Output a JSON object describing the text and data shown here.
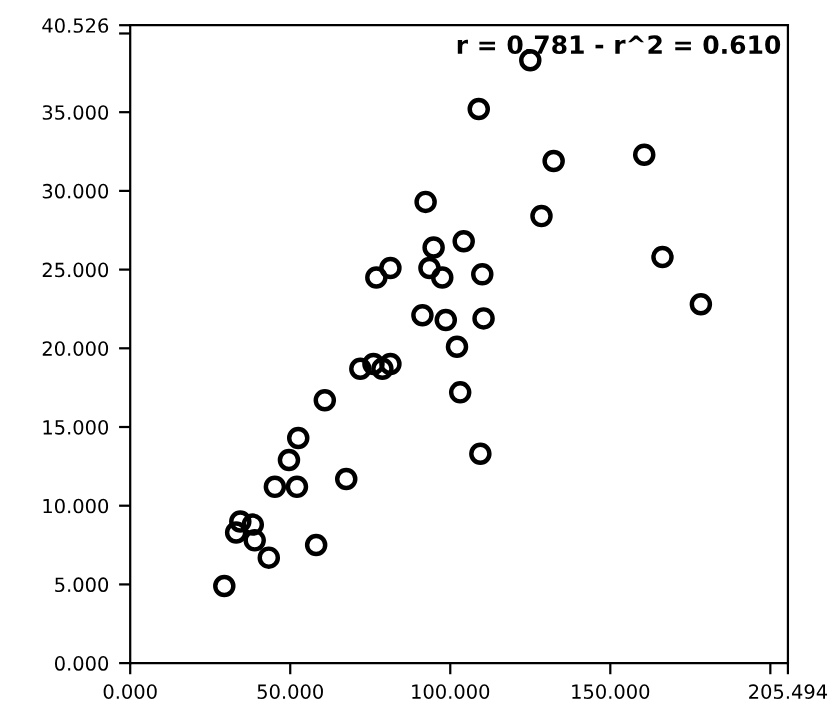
{
  "chart_data": {
    "type": "scatter",
    "marker": "circle",
    "grid": false,
    "legend": false,
    "annotations": [
      "r = 0.781 - r^2 = 0.610"
    ],
    "xlim": [
      0,
      205.494
    ],
    "ylim": [
      0,
      40.526
    ],
    "xticks": [
      {
        "value": 0,
        "label": "0.000"
      },
      {
        "value": 50,
        "label": "50.000"
      },
      {
        "value": 100,
        "label": "100.000"
      },
      {
        "value": 150,
        "label": "150.000"
      },
      {
        "value": 200,
        "label": null
      },
      {
        "value": 205.494,
        "label": "205.494"
      }
    ],
    "yticks": [
      {
        "value": 0,
        "label": "0.000"
      },
      {
        "value": 5,
        "label": "5.000"
      },
      {
        "value": 10,
        "label": "10.000"
      },
      {
        "value": 15,
        "label": "15.000"
      },
      {
        "value": 20,
        "label": "20.000"
      },
      {
        "value": 25,
        "label": "25.000"
      },
      {
        "value": 30,
        "label": "30.000"
      },
      {
        "value": 35,
        "label": "35.000"
      },
      {
        "value": 40,
        "label": null
      },
      {
        "value": 40.526,
        "label": "40.526"
      }
    ],
    "series": [
      {
        "color": "#000000",
        "x": [
          125,
          108.9,
          132.3,
          160.6,
          92.3,
          128.5,
          104.2,
          94.8,
          93.5,
          97.5,
          110,
          166.3,
          178.3,
          91.3,
          98.6,
          110.4,
          102.1,
          76.9,
          81.3,
          103.1,
          109.4,
          76.0,
          71.9,
          78.8,
          81.3,
          60.8,
          52.5,
          49.6,
          45.2,
          52.1,
          67.5,
          34.4,
          38.3,
          33.1,
          38.9,
          43.3,
          58.1,
          29.4
        ],
        "values": [
          38.3,
          35.2,
          31.9,
          32.3,
          29.3,
          28.4,
          26.8,
          26.4,
          25.1,
          24.5,
          24.7,
          25.8,
          22.8,
          22.1,
          21.8,
          21.9,
          20.1,
          24.5,
          25.1,
          17.2,
          13.3,
          19.0,
          18.7,
          18.7,
          19.0,
          16.7,
          14.3,
          12.9,
          11.2,
          11.2,
          11.7,
          9.0,
          8.8,
          8.3,
          7.8,
          6.7,
          7.5,
          4.9
        ]
      }
    ]
  }
}
